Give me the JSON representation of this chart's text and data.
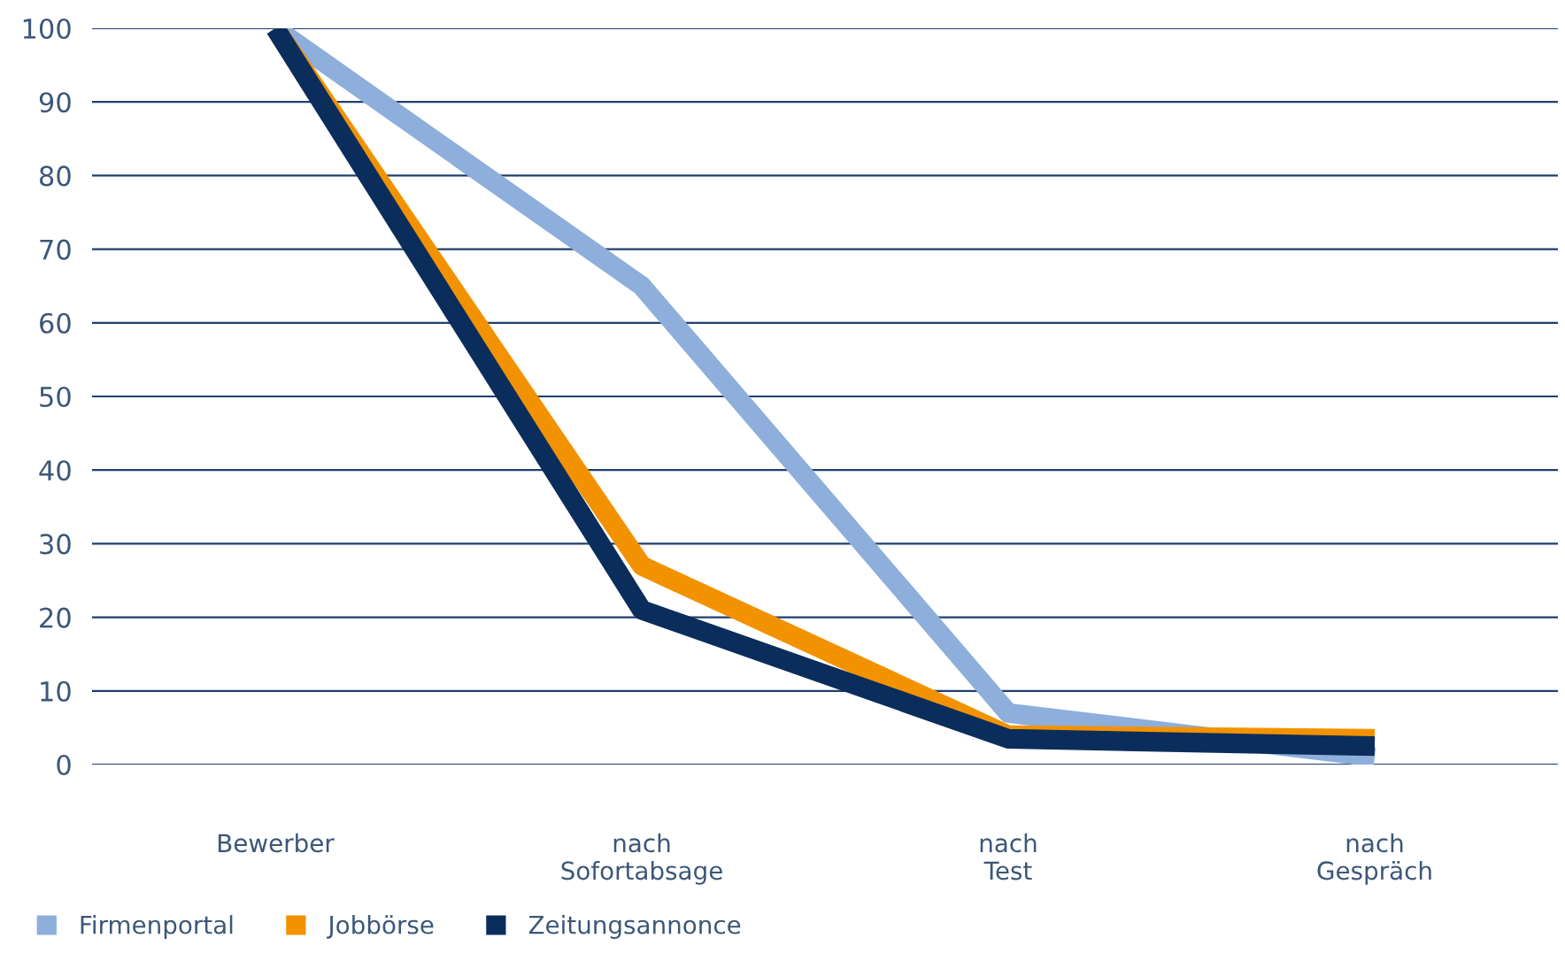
{
  "chart_data": {
    "type": "line",
    "categories": [
      "Bewerber",
      "nach\nSofortabsage",
      "nach\nTest",
      "nach\nGespräch"
    ],
    "series": [
      {
        "name": "Firmenportal",
        "color": "#8eaedb",
        "values": [
          100,
          65,
          7,
          1
        ]
      },
      {
        "name": "Jobbörse",
        "color": "#f39200",
        "values": [
          100,
          27,
          4,
          3.5
        ]
      },
      {
        "name": "Zeitungsannonce",
        "color": "#0b2d5b",
        "values": [
          100,
          21,
          3.5,
          2.5
        ]
      }
    ],
    "ylim": [
      0,
      100
    ],
    "yticks": [
      0,
      10,
      20,
      30,
      40,
      50,
      60,
      70,
      80,
      90,
      100
    ],
    "grid": "y",
    "legend": "bottom left",
    "marker": "none",
    "line_style": "solid"
  }
}
